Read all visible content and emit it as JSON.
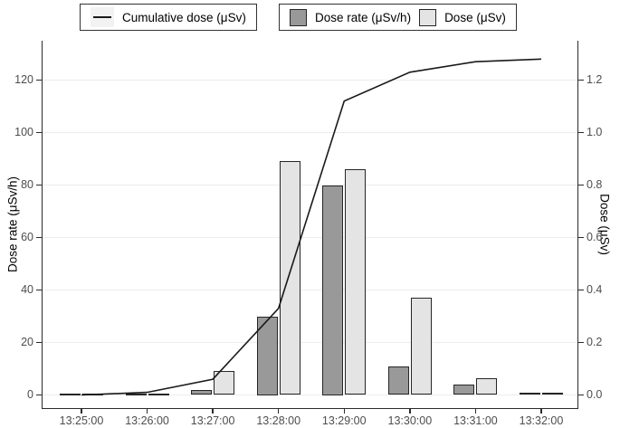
{
  "legend_line": {
    "label": "Cumulative dose (μSv)"
  },
  "legend_bars": {
    "dose_rate_label": "Dose rate (μSv/h)",
    "dose_label": "Dose (μSv)"
  },
  "colors": {
    "dose_rate_fill": "#999999",
    "dose_fill": "#e4e4e4",
    "bar_stroke": "#262626",
    "line_color": "#1a1a1a",
    "gridline": "#ececec",
    "tick_label": "#4d4d4d"
  },
  "chart_data": {
    "type": "combo-bar-line",
    "title": "",
    "categories": [
      "13:25:00",
      "13:26:00",
      "13:27:00",
      "13:28:00",
      "13:29:00",
      "13:30:00",
      "13:31:00",
      "13:32:00"
    ],
    "series": [
      {
        "name": "Cumulative dose (μSv)",
        "type": "line",
        "axis": "right",
        "values": [
          0,
          0.01,
          0.06,
          0.33,
          1.12,
          1.23,
          1.27,
          1.28
        ]
      },
      {
        "name": "Dose rate (μSv/h)",
        "type": "bar",
        "axis": "left",
        "values": [
          0.5,
          0.5,
          2,
          30,
          80,
          11,
          4,
          1
        ]
      },
      {
        "name": "Dose (μSv)",
        "type": "bar",
        "axis": "right",
        "values": [
          0.005,
          0.005,
          0.09,
          0.89,
          0.86,
          0.37,
          0.065,
          0.01
        ]
      }
    ],
    "left_axis": {
      "label": "Dose rate (μSv/h)",
      "ticks": [
        0,
        20,
        40,
        60,
        80,
        100,
        120
      ],
      "range": [
        0,
        135
      ]
    },
    "right_axis": {
      "label": "Dose (μSv)",
      "tick_labels": [
        "0.0",
        "0.2",
        "0.4",
        "0.6",
        "0.8",
        "1.0",
        "1.2"
      ],
      "range": [
        0,
        1.35
      ]
    },
    "legend_position": "top",
    "grid": "horizontal-major",
    "background": "#ffffff"
  }
}
